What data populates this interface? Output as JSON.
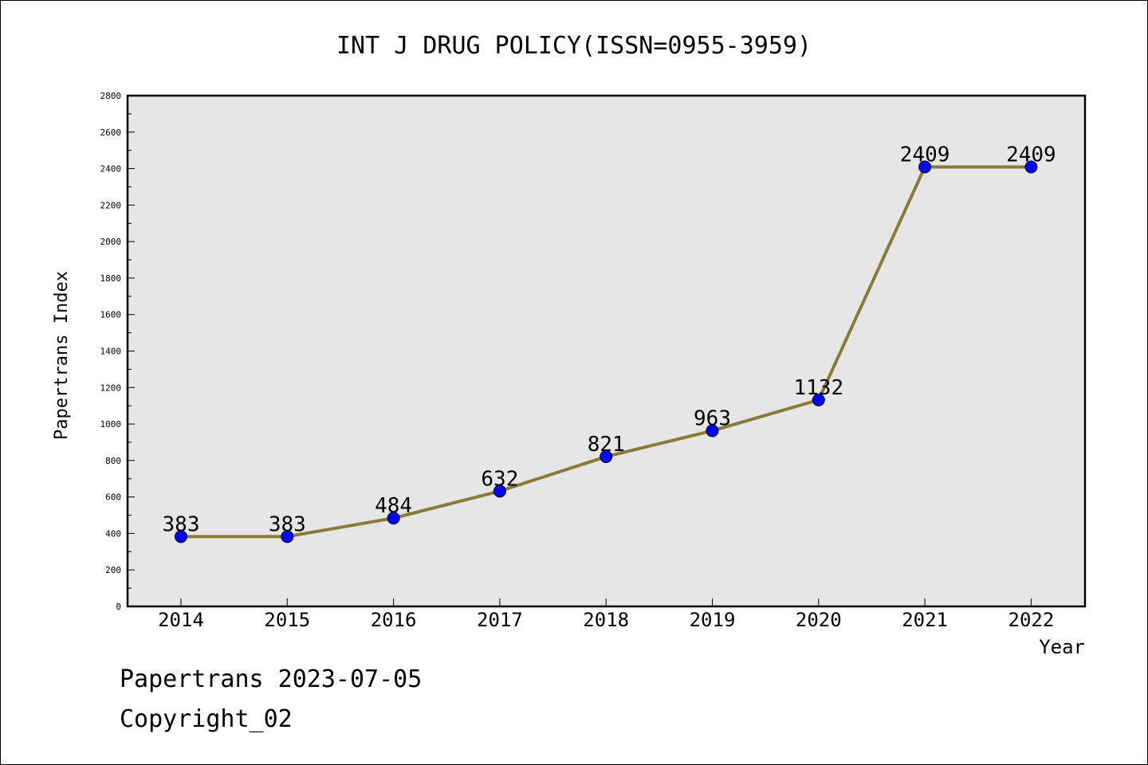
{
  "chart_data": {
    "type": "line",
    "title": "INT J DRUG POLICY(ISSN=0955-3959)",
    "xlabel": "Year",
    "ylabel": "Papertrans Index",
    "categories": [
      "2014",
      "2015",
      "2016",
      "2017",
      "2018",
      "2019",
      "2020",
      "2021",
      "2022"
    ],
    "series": [
      {
        "values": [
          383,
          383,
          484,
          632,
          821,
          963,
          1132,
          2409,
          2409
        ],
        "data_labels": [
          "383",
          "383",
          "484",
          "632",
          "821",
          "963",
          "1132",
          "2409",
          "2409"
        ],
        "line_color": "#8b7a35",
        "marker_color": "#0000ff"
      }
    ],
    "ylim": [
      0,
      2800
    ],
    "yticks": [
      0,
      200,
      400,
      600,
      800,
      1000,
      1200,
      1400,
      1600,
      1800,
      2000,
      2200,
      2400,
      2600,
      2800
    ],
    "ytick_labels": [
      "0",
      "200",
      "400",
      "600",
      "800",
      "1000",
      "1200",
      "1400",
      "1600",
      "1800",
      "2000",
      "2200",
      "2400",
      "2600",
      "2800"
    ],
    "grid": false,
    "plot_background": "#e6e6e6"
  },
  "footer": {
    "line1": "Papertrans 2023-07-05",
    "line2": "Copyright_02"
  }
}
